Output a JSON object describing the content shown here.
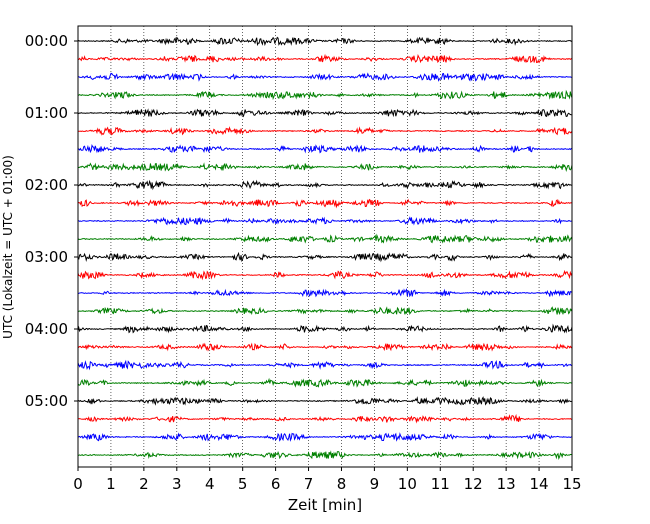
{
  "chart_data": {
    "type": "line",
    "title": "",
    "xlabel": "Zeit  [min]",
    "ylabel": "UTC (Lokalzeit = UTC + 01:00)",
    "xlim": [
      0,
      15
    ],
    "x_ticks": [
      0,
      1,
      2,
      3,
      4,
      5,
      6,
      7,
      8,
      9,
      10,
      11,
      12,
      13,
      14,
      15
    ],
    "x_tick_labels": [
      "0",
      "1",
      "2",
      "3",
      "4",
      "5",
      "6",
      "7",
      "8",
      "9",
      "10",
      "11",
      "12",
      "13",
      "14",
      "15"
    ],
    "y_tick_labels": [
      "00:00",
      "01:00",
      "02:00",
      "03:00",
      "04:00",
      "05:00"
    ],
    "grid": "vertical dotted",
    "trace_interval_minutes": 15,
    "traces": [
      {
        "start": "00:00",
        "color": "#000000"
      },
      {
        "start": "00:15",
        "color": "#ff0000"
      },
      {
        "start": "00:30",
        "color": "#0000ff"
      },
      {
        "start": "00:45",
        "color": "#008000"
      },
      {
        "start": "01:00",
        "color": "#000000"
      },
      {
        "start": "01:15",
        "color": "#ff0000"
      },
      {
        "start": "01:30",
        "color": "#0000ff"
      },
      {
        "start": "01:45",
        "color": "#008000"
      },
      {
        "start": "02:00",
        "color": "#000000"
      },
      {
        "start": "02:15",
        "color": "#ff0000"
      },
      {
        "start": "02:30",
        "color": "#0000ff"
      },
      {
        "start": "02:45",
        "color": "#008000"
      },
      {
        "start": "03:00",
        "color": "#000000"
      },
      {
        "start": "03:15",
        "color": "#ff0000"
      },
      {
        "start": "03:30",
        "color": "#0000ff"
      },
      {
        "start": "03:45",
        "color": "#008000"
      },
      {
        "start": "04:00",
        "color": "#000000"
      },
      {
        "start": "04:15",
        "color": "#ff0000"
      },
      {
        "start": "04:30",
        "color": "#0000ff"
      },
      {
        "start": "04:45",
        "color": "#008000"
      },
      {
        "start": "05:00",
        "color": "#000000"
      },
      {
        "start": "05:15",
        "color": "#ff0000"
      },
      {
        "start": "05:30",
        "color": "#0000ff"
      },
      {
        "start": "05:45",
        "color": "#008000"
      }
    ]
  }
}
